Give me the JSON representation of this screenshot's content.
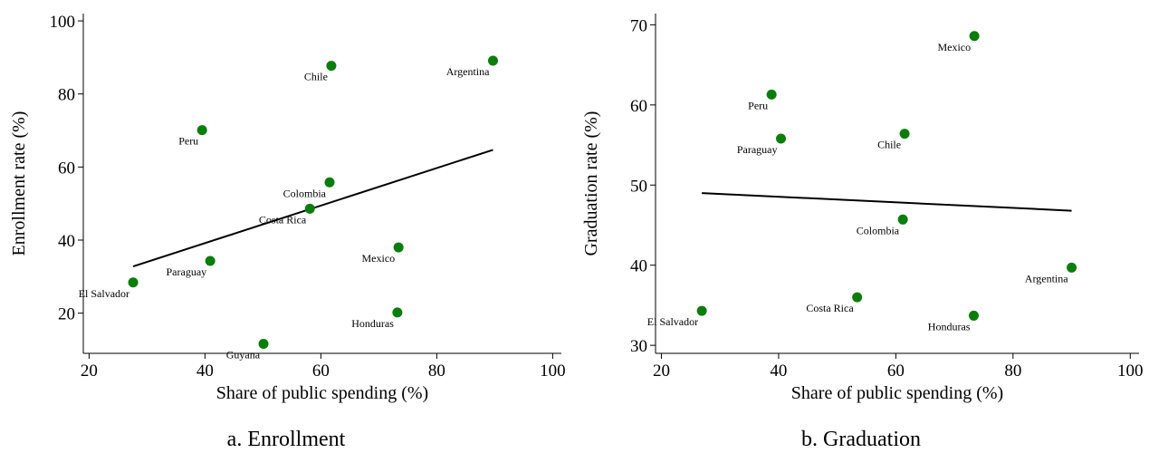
{
  "chart_data": [
    {
      "type": "scatter",
      "caption": "a. Enrollment",
      "x_label": "Share of public spending (%)",
      "y_label": "Enrollment rate (%)",
      "xlim": [
        19,
        101.5
      ],
      "ylim": [
        9,
        102
      ],
      "xticks": [
        20,
        40,
        60,
        80,
        100
      ],
      "yticks": [
        20,
        40,
        60,
        80,
        100
      ],
      "series": [
        {
          "color": "#0a7d0a",
          "point_labels": [
            "Argentina",
            "Chile",
            "Peru",
            "Colombia",
            "Costa Rica",
            "Mexico",
            "Paraguay",
            "El Salvador",
            "Honduras",
            "Guyana"
          ],
          "x": [
            89.7,
            61.8,
            39.5,
            61.5,
            58.1,
            73.4,
            40.9,
            27.6,
            73.2,
            50.1
          ],
          "values": [
            89.1,
            87.7,
            70.1,
            55.8,
            48.6,
            38.0,
            34.3,
            28.4,
            20.2,
            11.6
          ]
        }
      ],
      "fit": {
        "color": "#000000",
        "x": [
          27.6,
          89.7
        ],
        "values": [
          32.8,
          64.7
        ]
      }
    },
    {
      "type": "scatter",
      "caption": "b. Graduation",
      "x_label": "Share of public spending (%)",
      "y_label": "Graduation rate (%)",
      "xlim": [
        19,
        101.5
      ],
      "ylim": [
        29,
        71.4
      ],
      "xticks": [
        20,
        40,
        60,
        80,
        100
      ],
      "yticks": [
        30,
        40,
        50,
        60,
        70
      ],
      "series": [
        {
          "color": "#0a7d0a",
          "point_labels": [
            "Mexico",
            "Peru",
            "Paraguay",
            "Chile",
            "Colombia",
            "Argentina",
            "Costa Rica",
            "El Salvador",
            "Honduras"
          ],
          "x": [
            73.4,
            38.8,
            40.4,
            61.5,
            61.2,
            90.0,
            53.4,
            26.9,
            73.3
          ],
          "values": [
            68.6,
            61.3,
            55.8,
            56.4,
            45.7,
            39.7,
            36.0,
            34.3,
            33.7
          ]
        }
      ],
      "fit": {
        "color": "#000000",
        "x": [
          26.9,
          90.0
        ],
        "values": [
          49.0,
          46.8
        ]
      }
    }
  ]
}
